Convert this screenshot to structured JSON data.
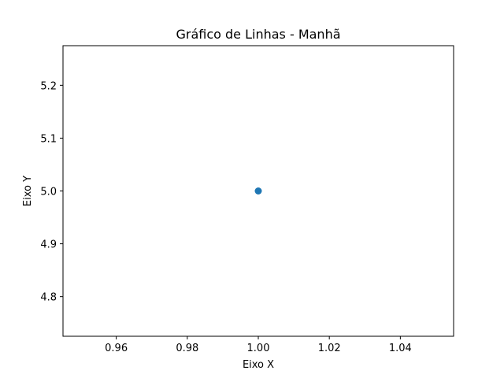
{
  "chart_data": {
    "type": "line",
    "title": "Gráfico de Linhas - Manhã",
    "xlabel": "Eixo X",
    "ylabel": "Eixo Y",
    "xlim": [
      0.945,
      1.055
    ],
    "ylim": [
      4.725,
      5.275
    ],
    "x_ticks": [
      0.96,
      0.98,
      1.0,
      1.02,
      1.04
    ],
    "x_tick_labels": [
      "0.96",
      "0.98",
      "1.00",
      "1.02",
      "1.04"
    ],
    "y_ticks": [
      4.8,
      4.9,
      5.0,
      5.1,
      5.2
    ],
    "y_tick_labels": [
      "4.8",
      "4.9",
      "5.0",
      "5.1",
      "5.2"
    ],
    "grid": false,
    "series": [
      {
        "x": [
          1.0
        ],
        "y": [
          5.0
        ],
        "color": "#1f77b4",
        "marker": "circle"
      }
    ]
  }
}
